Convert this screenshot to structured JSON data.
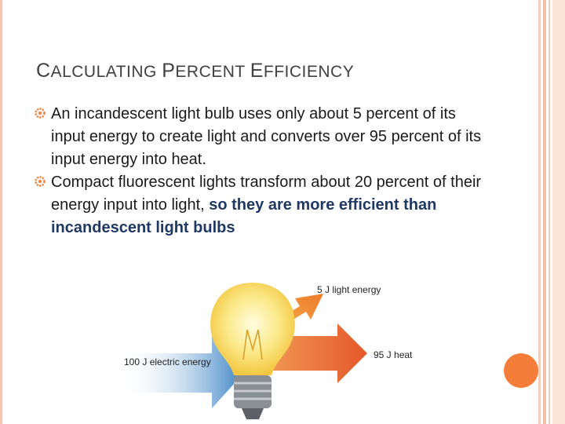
{
  "slide": {
    "title_parts": [
      {
        "cap": "C",
        "rest": "ALCULATING "
      },
      {
        "cap": "P",
        "rest": "ERCENT "
      },
      {
        "cap": "E",
        "rest": "FFICIENCY"
      }
    ],
    "bullets": [
      {
        "text": "An incandescent light bulb uses only about 5 percent of its input energy to create light and converts over 95 percent of its input energy into heat.",
        "emphasis": ""
      },
      {
        "text": "Compact fluorescent lights transform about 20 percent of their energy input into light, ",
        "emphasis": "so they are more efficient than incandescent light bulbs"
      }
    ],
    "bullet_icon": "gear-bullet-icon",
    "accent_color": "#f47d3a"
  },
  "figure": {
    "light_label": "5 J light energy",
    "input_label": "100 J electric energy",
    "heat_label": "95 J heat"
  }
}
